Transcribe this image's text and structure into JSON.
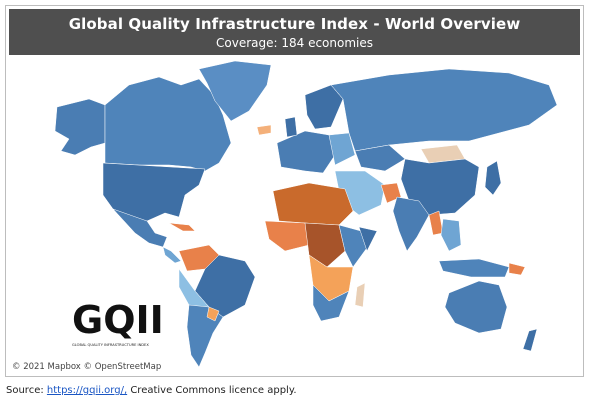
{
  "header": {
    "title": "Global Quality Infrastructure Index - World Overview",
    "subtitle": "Coverage: 184 economies"
  },
  "logo": {
    "text": "GQII",
    "tagline": "GLOBAL QUALITY INFRASTRUCTURE INDEX"
  },
  "map": {
    "attribution": "© 2021 Mapbox © OpenStreetMap"
  },
  "footer": {
    "label": "Source: ",
    "link": "https://gqii.org/,",
    "note": " Creative Commons licence apply."
  }
}
